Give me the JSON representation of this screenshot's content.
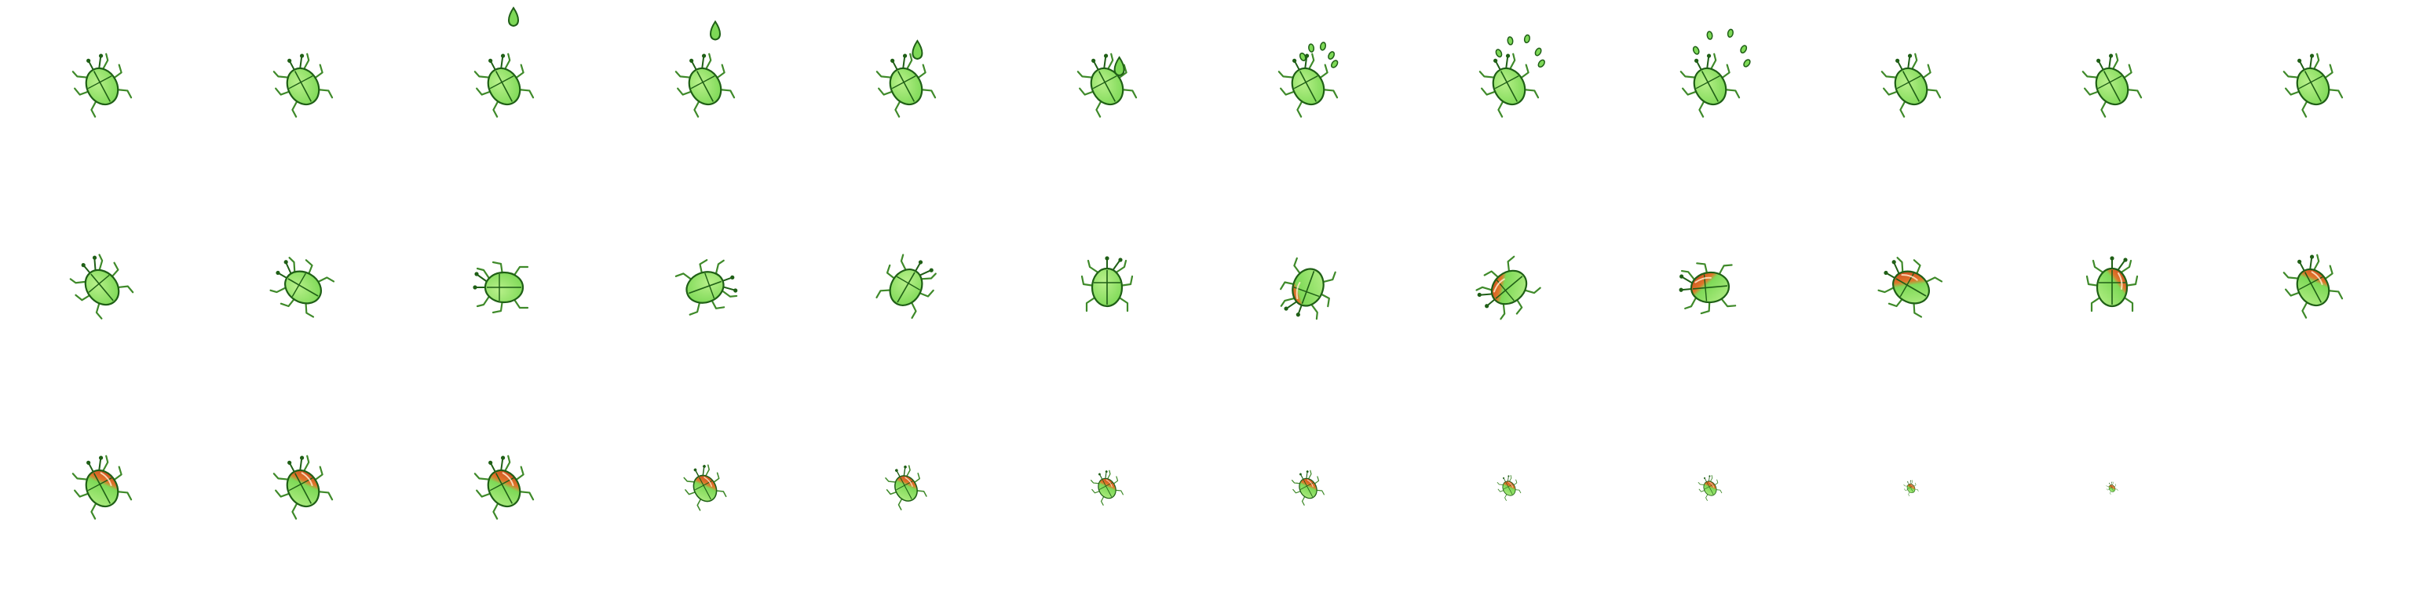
{
  "sprite_sheet": {
    "columns": 12,
    "rows": 3,
    "frame_count": 35,
    "colors": {
      "background": "#ffffff",
      "body_green": "#7ed957",
      "body_light": "#b8f08a",
      "outline": "#1f5f16",
      "leg": "#3f8a2a",
      "drop": "#7ed957",
      "red": "#c0361c",
      "orange": "#e0762a"
    },
    "frames": [
      {
        "rot": -28,
        "scale": 1.0,
        "red": 0.0,
        "fx": "none",
        "fxv": 0
      },
      {
        "rot": -28,
        "scale": 1.0,
        "red": 0.0,
        "fx": "none",
        "fxv": 0
      },
      {
        "rot": -28,
        "scale": 1.0,
        "red": 0.0,
        "fx": "drop",
        "fxv": 0.0
      },
      {
        "rot": -28,
        "scale": 1.0,
        "red": 0.0,
        "fx": "drop",
        "fxv": 0.25
      },
      {
        "rot": -28,
        "scale": 1.0,
        "red": 0.0,
        "fx": "drop",
        "fxv": 0.6
      },
      {
        "rot": -28,
        "scale": 1.0,
        "red": 0.0,
        "fx": "drop",
        "fxv": 0.9
      },
      {
        "rot": -28,
        "scale": 1.0,
        "red": 0.0,
        "fx": "splash",
        "fxv": 0.3
      },
      {
        "rot": -28,
        "scale": 1.0,
        "red": 0.0,
        "fx": "splash",
        "fxv": 0.7
      },
      {
        "rot": -28,
        "scale": 1.0,
        "red": 0.0,
        "fx": "splash",
        "fxv": 1.0
      },
      {
        "rot": -28,
        "scale": 1.0,
        "red": 0.0,
        "fx": "none",
        "fxv": 0
      },
      {
        "rot": -28,
        "scale": 1.0,
        "red": 0.0,
        "fx": "none",
        "fxv": 0
      },
      {
        "rot": -28,
        "scale": 1.0,
        "red": 0.0,
        "fx": "none",
        "fxv": 0
      },
      {
        "rot": -40,
        "scale": 1.0,
        "red": 0.0,
        "fx": "none",
        "fxv": 0
      },
      {
        "rot": -60,
        "scale": 1.0,
        "red": 0.0,
        "fx": "none",
        "fxv": 0
      },
      {
        "rot": -90,
        "scale": 1.0,
        "red": 0.0,
        "fx": "none",
        "fxv": 0
      },
      {
        "rot": 70,
        "scale": 1.0,
        "red": 0.0,
        "fx": "none",
        "fxv": 0
      },
      {
        "rot": 30,
        "scale": 1.0,
        "red": 0.0,
        "fx": "none",
        "fxv": 0
      },
      {
        "rot": 0,
        "scale": 1.0,
        "red": 0.0,
        "fx": "none",
        "fxv": 0
      },
      {
        "rot": -160,
        "scale": 1.0,
        "red": 0.4,
        "fx": "none",
        "fxv": 0
      },
      {
        "rot": -130,
        "scale": 1.0,
        "red": 0.55,
        "fx": "none",
        "fxv": 0
      },
      {
        "rot": -95,
        "scale": 1.0,
        "red": 0.6,
        "fx": "none",
        "fxv": 0
      },
      {
        "rot": -60,
        "scale": 1.0,
        "red": 0.65,
        "fx": "none",
        "fxv": 0
      },
      {
        "rot": 0,
        "scale": 1.0,
        "red": 0.55,
        "fx": "none",
        "fxv": 0
      },
      {
        "rot": -28,
        "scale": 1.0,
        "red": 0.55,
        "fx": "none",
        "fxv": 0
      },
      {
        "rot": -28,
        "scale": 1.0,
        "red": 0.6,
        "fx": "none",
        "fxv": 0
      },
      {
        "rot": -28,
        "scale": 1.0,
        "red": 0.6,
        "fx": "none",
        "fxv": 0
      },
      {
        "rot": -28,
        "scale": 1.0,
        "red": 0.65,
        "fx": "none",
        "fxv": 0
      },
      {
        "rot": -28,
        "scale": 0.72,
        "red": 0.65,
        "fx": "none",
        "fxv": 0
      },
      {
        "rot": -28,
        "scale": 0.7,
        "red": 0.6,
        "fx": "none",
        "fxv": 0
      },
      {
        "rot": -28,
        "scale": 0.55,
        "red": 0.65,
        "fx": "none",
        "fxv": 0
      },
      {
        "rot": -28,
        "scale": 0.55,
        "red": 0.65,
        "fx": "none",
        "fxv": 0
      },
      {
        "rot": -28,
        "scale": 0.4,
        "red": 0.65,
        "fx": "none",
        "fxv": 0
      },
      {
        "rot": -28,
        "scale": 0.4,
        "red": 0.65,
        "fx": "none",
        "fxv": 0
      },
      {
        "rot": -28,
        "scale": 0.25,
        "red": 0.7,
        "fx": "none",
        "fxv": 0
      },
      {
        "rot": -28,
        "scale": 0.2,
        "red": 0.75,
        "fx": "none",
        "fxv": 0
      }
    ]
  }
}
